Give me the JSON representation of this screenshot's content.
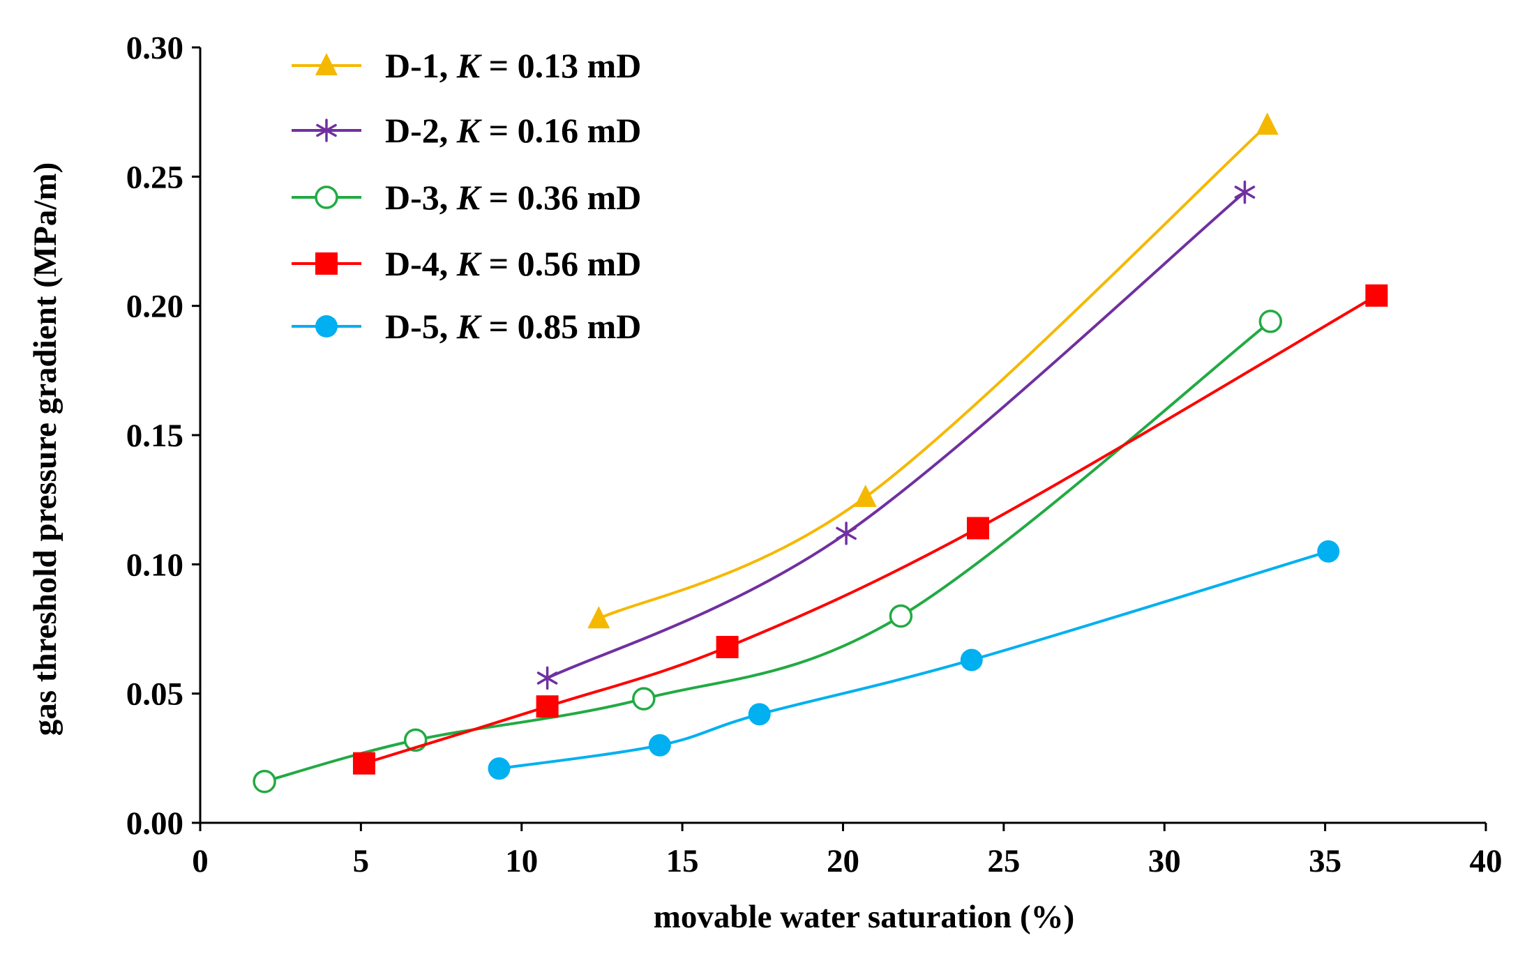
{
  "chart_data": {
    "type": "line",
    "title": "",
    "xlabel": "movable water saturation (%)",
    "ylabel": "gas threshold pressure gradient (MPa/m)",
    "xlim": [
      0,
      40
    ],
    "ylim": [
      0,
      0.3
    ],
    "x_ticks": [
      "0",
      "5",
      "10",
      "15",
      "20",
      "25",
      "30",
      "35",
      "40"
    ],
    "y_ticks": [
      "0.00",
      "0.05",
      "0.10",
      "0.15",
      "0.20",
      "0.25",
      "0.30"
    ],
    "grid": false,
    "legend_position": "top-left",
    "series": [
      {
        "name": "D-1, K = 0.13 mD",
        "label_prefix": "D-1, ",
        "label_var": "K",
        "label_suffix": " = 0.13 mD",
        "color": "#F5B800",
        "marker": "triangle",
        "x": [
          12.4,
          20.7,
          33.2
        ],
        "y": [
          0.079,
          0.126,
          0.27
        ]
      },
      {
        "name": "D-2, K = 0.16 mD",
        "label_prefix": "D-2, ",
        "label_var": "K",
        "label_suffix": " = 0.16 mD",
        "color": "#7030A0",
        "marker": "asterisk",
        "x": [
          10.8,
          20.1,
          32.5
        ],
        "y": [
          0.056,
          0.112,
          0.244
        ]
      },
      {
        "name": "D-3, K = 0.36 mD",
        "label_prefix": "D-3, ",
        "label_var": "K",
        "label_suffix": " = 0.36 mD",
        "color": "#22AA44",
        "marker": "open-circle",
        "x": [
          2.0,
          6.7,
          13.8,
          21.8,
          33.3
        ],
        "y": [
          0.016,
          0.032,
          0.048,
          0.08,
          0.194
        ]
      },
      {
        "name": "D-4, K = 0.56 mD",
        "label_prefix": "D-4, ",
        "label_var": "K",
        "label_suffix": " = 0.56 mD",
        "color": "#FF0000",
        "marker": "square",
        "x": [
          5.1,
          10.8,
          16.4,
          24.2,
          36.6
        ],
        "y": [
          0.023,
          0.045,
          0.068,
          0.114,
          0.204
        ]
      },
      {
        "name": "D-5, K = 0.85 mD",
        "label_prefix": "D-5, ",
        "label_var": "K",
        "label_suffix": " = 0.85 mD",
        "color": "#00B0F0",
        "marker": "filled-circle",
        "x": [
          9.3,
          14.3,
          17.4,
          24.0,
          35.1
        ],
        "y": [
          0.021,
          0.03,
          0.042,
          0.063,
          0.105
        ]
      }
    ]
  }
}
